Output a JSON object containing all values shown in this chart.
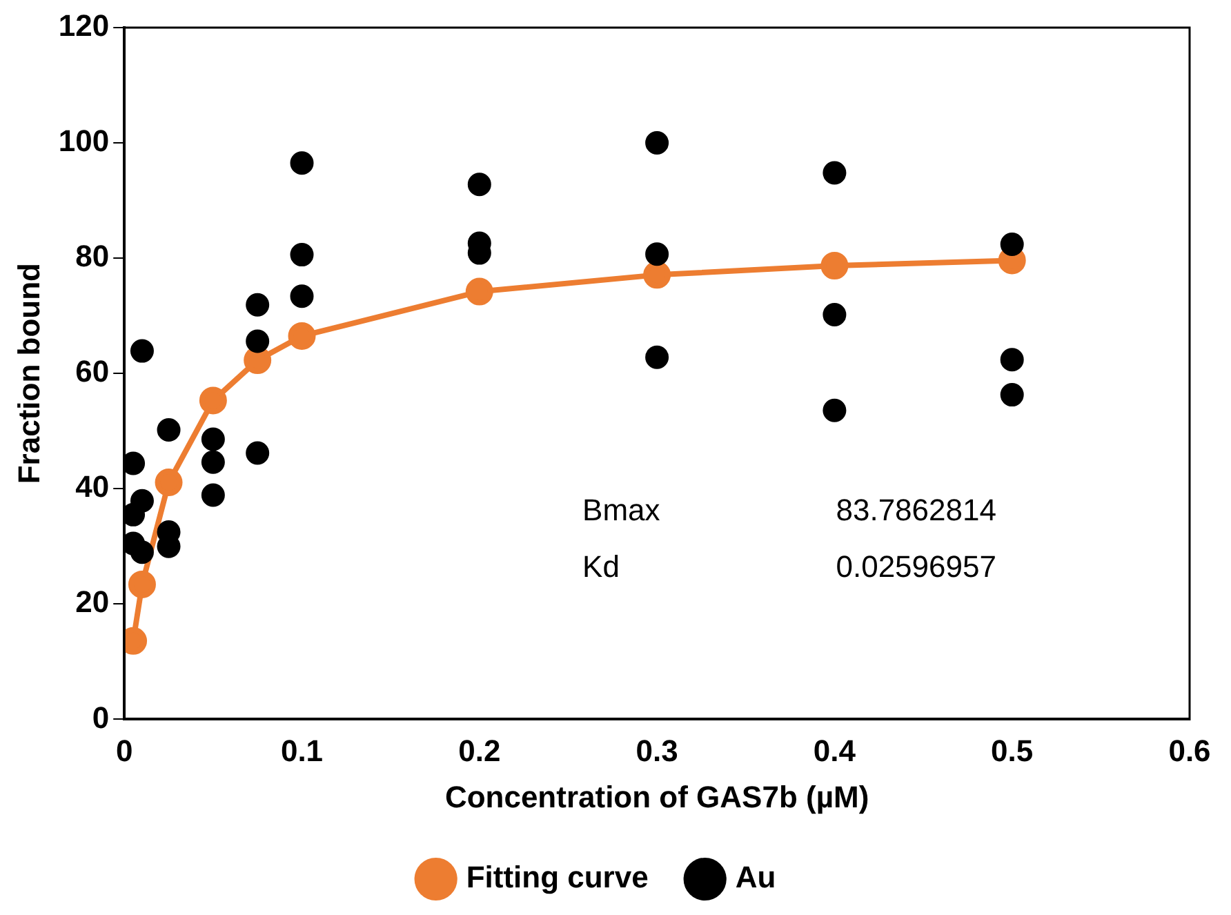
{
  "chart_data": {
    "type": "scatter",
    "xlabel": "Concentration of GAS7b (µM)",
    "ylabel": "Fraction bound",
    "xlim": [
      0,
      0.6
    ],
    "xticks": [
      {
        "value": 0,
        "label": "0"
      },
      {
        "value": 0.1,
        "label": "0.1"
      },
      {
        "value": 0.2,
        "label": "0.2"
      },
      {
        "value": 0.3,
        "label": "0.3"
      },
      {
        "value": 0.4,
        "label": "0.4"
      },
      {
        "value": 0.5,
        "label": "0.5"
      },
      {
        "value": 0.6,
        "label": "0.6"
      }
    ],
    "ylim": [
      0,
      120
    ],
    "yticks": [
      0,
      20,
      40,
      60,
      80,
      100,
      120
    ],
    "series": [
      {
        "name": "Fitting curve",
        "type": "line",
        "color": "#ed7d31",
        "marker": "circle",
        "line_style": "solid",
        "x": [
          0.005,
          0.01,
          0.025,
          0.05,
          0.075,
          0.1,
          0.2,
          0.3,
          0.4,
          0.5
        ],
        "values": [
          13.6,
          23.4,
          41.1,
          55.3,
          62.3,
          66.5,
          74.2,
          77.1,
          78.7,
          79.6
        ]
      },
      {
        "name": "Au",
        "color": "#000000",
        "marker": "circle",
        "x": [
          0.005,
          0.005,
          0.005,
          0.01,
          0.01,
          0.01,
          0.025,
          0.025,
          0.025,
          0.05,
          0.05,
          0.05,
          0.075,
          0.075,
          0.075,
          0.1,
          0.1,
          0.1,
          0.2,
          0.2,
          0.2,
          0.3,
          0.3,
          0.3,
          0.4,
          0.4,
          0.4,
          0.5,
          0.5,
          0.5
        ],
        "values": [
          44.4,
          35.5,
          30.5,
          63.9,
          37.9,
          29,
          50.2,
          32.5,
          30,
          48.6,
          44.6,
          38.9,
          71.9,
          65.6,
          46.2,
          96.5,
          80.6,
          73.4,
          92.8,
          82.6,
          80.9,
          100,
          80.7,
          62.8,
          94.8,
          70.2,
          53.6,
          82.4,
          62.4,
          56.3
        ]
      }
    ],
    "annotations": [
      "Bmax",
      "83.7862814",
      "Kd",
      "0.02596957"
    ],
    "grid": false,
    "legend": "bottom"
  }
}
